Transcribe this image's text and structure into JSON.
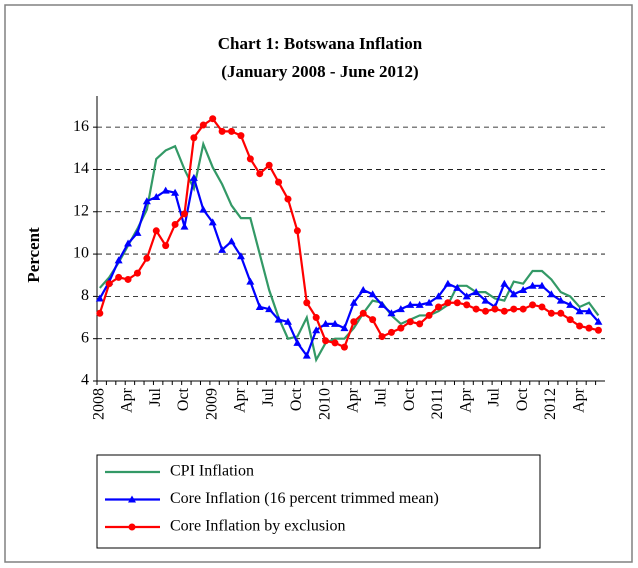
{
  "chart_data": {
    "type": "line",
    "title": "Chart 1: Botswana Inflation",
    "subtitle": "(January 2008 - June 2012)",
    "y_label": "Percent",
    "categories": [
      "2008",
      null,
      null,
      "Apr",
      null,
      null,
      "Jul",
      null,
      null,
      "Oct",
      null,
      null,
      "2009",
      null,
      null,
      "Apr",
      null,
      null,
      "Jul",
      null,
      null,
      "Oct",
      null,
      null,
      "2010",
      null,
      null,
      "Apr",
      null,
      null,
      "Jul",
      null,
      null,
      "Oct",
      null,
      null,
      "2011",
      null,
      null,
      "Apr",
      null,
      null,
      "Jul",
      null,
      null,
      "Oct",
      null,
      null,
      "2012",
      null,
      null,
      "Apr",
      null,
      null
    ],
    "series": [
      {
        "name": "CPI Inflation",
        "color": "#339966",
        "values": [
          8.4,
          8.9,
          9.6,
          10.4,
          11.2,
          12.1,
          14.5,
          14.9,
          15.1,
          14.0,
          13.1,
          15.2,
          14.1,
          13.3,
          12.3,
          11.7,
          11.7,
          10.0,
          8.3,
          7.0,
          6.0,
          6.1,
          7.0,
          5.0,
          5.8,
          6.0,
          6.0,
          6.5,
          7.2,
          7.8,
          7.7,
          7.1,
          6.7,
          6.9,
          7.1,
          7.1,
          7.3,
          7.6,
          8.5,
          8.5,
          8.2,
          8.2,
          7.9,
          7.8,
          8.7,
          8.6,
          9.2,
          9.2,
          8.8,
          8.2,
          8.0,
          7.5,
          7.7,
          7.1
        ]
      },
      {
        "name": "Core Inflation (16 percent trimmed mean)",
        "color": "#0000ff",
        "marker": "triangle",
        "values": [
          7.9,
          8.7,
          9.7,
          10.5,
          11.0,
          12.5,
          12.7,
          13.0,
          12.9,
          11.3,
          13.6,
          12.1,
          11.5,
          10.2,
          10.6,
          9.9,
          8.7,
          7.5,
          7.4,
          6.9,
          6.8,
          5.8,
          5.2,
          6.4,
          6.7,
          6.7,
          6.5,
          7.7,
          8.3,
          8.1,
          7.6,
          7.2,
          7.4,
          7.6,
          7.6,
          7.7,
          8.0,
          8.6,
          8.4,
          8.0,
          8.2,
          7.8,
          7.5,
          8.6,
          8.1,
          8.3,
          8.5,
          8.5,
          8.1,
          7.8,
          7.6,
          7.3,
          7.3,
          6.8
        ]
      },
      {
        "name": "Core Inflation by exclusion",
        "color": "#ff0000",
        "marker": "circle",
        "values": [
          7.2,
          8.6,
          8.9,
          8.8,
          9.1,
          9.8,
          11.1,
          10.4,
          11.4,
          11.9,
          15.5,
          16.1,
          16.4,
          15.8,
          15.8,
          15.6,
          14.5,
          13.8,
          14.2,
          13.4,
          12.6,
          11.1,
          7.7,
          7.0,
          5.9,
          5.8,
          5.6,
          6.8,
          7.2,
          6.9,
          6.1,
          6.3,
          6.5,
          6.8,
          6.7,
          7.1,
          7.5,
          7.7,
          7.7,
          7.6,
          7.4,
          7.3,
          7.4,
          7.3,
          7.4,
          7.4,
          7.6,
          7.5,
          7.2,
          7.2,
          6.9,
          6.6,
          6.5,
          6.4
        ]
      }
    ],
    "ylim": [
      4,
      17
    ],
    "yticks": [
      4,
      6,
      8,
      10,
      12,
      14,
      16
    ],
    "grid": true
  }
}
